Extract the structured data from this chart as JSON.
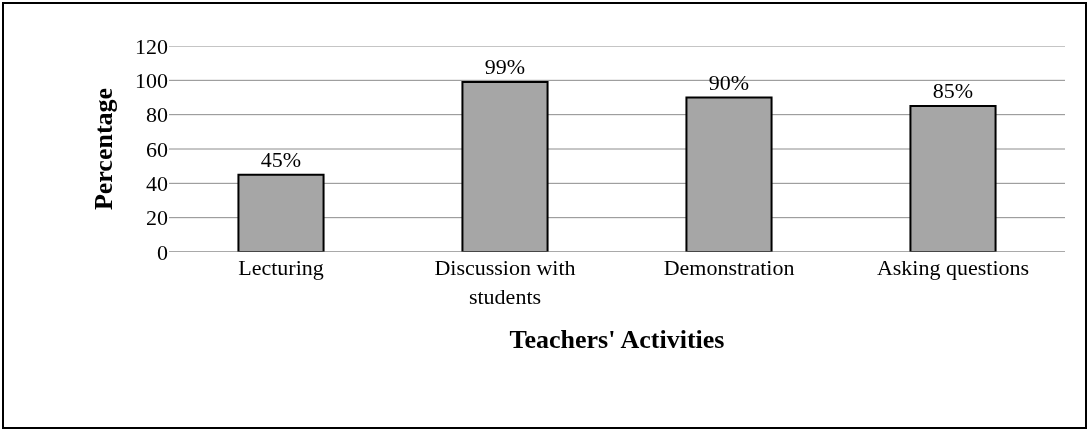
{
  "chart_data": {
    "type": "bar",
    "xlabel": "Teachers' Activities",
    "ylabel": "Percentage",
    "categories": [
      "Lecturing",
      "Discussion with students",
      "Demonstration",
      "Asking questions"
    ],
    "values": [
      45,
      99,
      90,
      85
    ],
    "value_labels": [
      "45%",
      "99%",
      "90%",
      "85%"
    ],
    "color": "#a6a6a6",
    "ylim": [
      0,
      120
    ],
    "yticks": [
      0,
      20,
      40,
      60,
      80,
      100,
      120
    ],
    "grid": "y"
  }
}
